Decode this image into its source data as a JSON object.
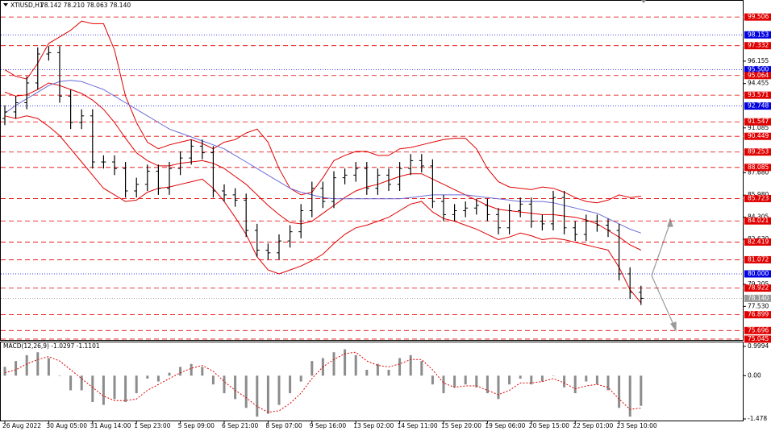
{
  "chart_data": [
    {
      "type": "ohlc",
      "title": "XTIUSD,H1",
      "quote": "78.142 78.210 78.063 78.140",
      "categories": [
        "26 Aug 2022",
        null,
        null,
        null,
        "30 Aug 05:00",
        null,
        null,
        null,
        "31 Aug 14:00",
        null,
        null,
        null,
        "1 Sep 23:00",
        null,
        null,
        null,
        "5 Sep 09:00",
        null,
        null,
        null,
        "6 Sep 21:00",
        null,
        null,
        null,
        "8 Sep 07:00",
        null,
        null,
        null,
        "9 Sep 16:00",
        null,
        null,
        null,
        "13 Sep 02:00",
        null,
        null,
        null,
        "14 Sep 11:00",
        null,
        null,
        null,
        "15 Sep 20:00",
        null,
        null,
        null,
        "19 Sep 06:00",
        null,
        null,
        null,
        "20 Sep 15:00",
        null,
        null,
        null,
        "22 Sep 01:00",
        null,
        null,
        null,
        "23 Sep 10:00",
        null,
        null
      ],
      "open": [
        91.8,
        92.3,
        93.0,
        94.5,
        96.7,
        96.8,
        93.5,
        91.5,
        92.0,
        88.5,
        88.5,
        88.0,
        86.3,
        86.8,
        87.8,
        86.5,
        88.0,
        88.8,
        89.7,
        89.2,
        86.3,
        86.0,
        85.6,
        83.3,
        81.8,
        81.6,
        82.5,
        83.2,
        84.8,
        86.5,
        85.5,
        87.3,
        87.5,
        88.0,
        86.5,
        87.5,
        86.8,
        88.0,
        88.6,
        88.2,
        85.5,
        84.5,
        84.8,
        85.0,
        85.2,
        84.5,
        83.5,
        84.8,
        85.3,
        84.0,
        83.8,
        85.8,
        83.5,
        83.0,
        84.0,
        83.7,
        83.3,
        80.0,
        78.6
      ],
      "high": [
        92.8,
        93.5,
        95.0,
        97.2,
        97.3,
        97.3,
        94.0,
        92.5,
        92.5,
        89.0,
        89.0,
        88.5,
        87.3,
        88.3,
        88.3,
        88.5,
        89.3,
        90.2,
        90.2,
        89.7,
        86.8,
        86.5,
        86.1,
        83.8,
        82.3,
        83.0,
        83.7,
        85.3,
        87.0,
        87.0,
        87.8,
        88.0,
        88.5,
        88.5,
        88.0,
        88.0,
        88.5,
        89.1,
        89.1,
        88.7,
        86.0,
        85.3,
        85.5,
        85.7,
        85.7,
        85.0,
        85.3,
        85.8,
        85.8,
        84.5,
        86.3,
        86.3,
        84.0,
        84.5,
        84.5,
        84.2,
        83.8,
        80.5,
        79.1
      ],
      "low": [
        91.3,
        91.8,
        92.5,
        94.0,
        96.2,
        93.0,
        91.0,
        91.0,
        88.0,
        88.0,
        87.5,
        85.8,
        85.8,
        86.3,
        86.0,
        86.0,
        87.5,
        88.3,
        88.7,
        85.8,
        85.5,
        85.1,
        82.8,
        81.3,
        81.1,
        81.1,
        82.0,
        82.7,
        84.3,
        85.0,
        85.0,
        86.8,
        87.0,
        86.0,
        86.0,
        86.3,
        86.3,
        87.5,
        87.7,
        85.0,
        84.0,
        84.0,
        84.3,
        84.5,
        84.0,
        83.0,
        83.0,
        84.3,
        83.5,
        83.3,
        83.3,
        83.0,
        82.5,
        82.5,
        83.2,
        82.8,
        79.5,
        78.1,
        77.64
      ],
      "close": [
        92.3,
        93.0,
        94.5,
        96.7,
        96.8,
        93.5,
        91.5,
        92.0,
        88.5,
        88.5,
        88.0,
        86.3,
        86.8,
        87.8,
        86.5,
        88.0,
        88.8,
        89.7,
        89.2,
        86.3,
        86.0,
        85.6,
        83.3,
        81.8,
        81.6,
        82.5,
        83.2,
        84.8,
        86.5,
        85.5,
        87.3,
        87.5,
        88.0,
        86.5,
        87.5,
        86.8,
        88.0,
        88.6,
        88.2,
        85.5,
        84.5,
        84.8,
        85.0,
        85.2,
        84.5,
        83.5,
        84.8,
        85.3,
        84.0,
        83.8,
        85.8,
        83.5,
        83.0,
        84.0,
        83.7,
        83.3,
        80.0,
        78.6,
        78.14
      ],
      "bar_color": "#000000",
      "series": [
        {
          "color": "#e00000",
          "values": [
            95.5,
            95.0,
            94.8,
            96.0,
            97.5,
            98.0,
            98.5,
            99.2,
            99.0,
            99.0,
            97.0,
            93.5,
            91.5,
            90.0,
            89.5,
            89.8,
            90.0,
            90.2,
            89.9,
            89.5,
            90.0,
            90.2,
            90.7,
            91.0,
            90.0,
            88.0,
            86.5,
            86.0,
            86.2,
            87.3,
            88.6,
            89.0,
            89.3,
            89.3,
            89.0,
            89.0,
            89.5,
            89.6,
            89.8,
            90.0,
            90.2,
            90.3,
            90.3,
            89.5,
            88.0,
            87.0,
            86.6,
            86.5,
            86.4,
            86.6,
            86.5,
            86.2,
            85.8,
            85.5,
            85.4,
            85.6,
            86.0,
            85.8,
            85.9
          ]
        },
        {
          "color": "#e00000",
          "values": [
            93.8,
            93.5,
            93.6,
            94.0,
            94.5,
            94.3,
            94.0,
            93.7,
            93.2,
            92.5,
            91.5,
            90.3,
            89.2,
            88.6,
            88.2,
            88.2,
            88.4,
            88.5,
            88.6,
            88.4,
            88.0,
            87.4,
            86.8,
            86.0,
            85.2,
            84.5,
            83.9,
            83.8,
            84.0,
            84.6,
            85.2,
            85.8,
            86.3,
            86.6,
            86.8,
            87.1,
            87.4,
            87.6,
            87.6,
            87.2,
            86.8,
            86.4,
            86.0,
            85.6,
            85.2,
            84.9,
            84.8,
            84.7,
            84.6,
            84.5,
            84.5,
            84.4,
            84.3,
            84.1,
            83.8,
            83.3,
            82.8,
            82.2,
            81.8
          ]
        },
        {
          "color": "#e00000",
          "values": [
            92.0,
            91.8,
            92.0,
            91.8,
            91.2,
            90.5,
            89.5,
            88.5,
            87.5,
            86.5,
            86.0,
            85.5,
            85.6,
            86.2,
            86.5,
            86.6,
            86.8,
            87.0,
            87.2,
            86.5,
            85.5,
            84.3,
            83.0,
            81.3,
            80.3,
            80.0,
            80.3,
            80.6,
            81.0,
            81.5,
            82.3,
            83.0,
            83.5,
            83.7,
            84.0,
            84.3,
            84.8,
            85.3,
            85.5,
            84.7,
            84.2,
            84.0,
            83.7,
            83.4,
            83.0,
            82.6,
            82.8,
            83.1,
            82.9,
            82.6,
            82.7,
            82.6,
            82.4,
            82.2,
            82.0,
            81.8,
            80.5,
            78.8,
            77.8
          ]
        },
        {
          "color": "#6b6bd8",
          "values": [
            92.2,
            92.8,
            93.3,
            93.8,
            94.3,
            94.6,
            94.7,
            94.6,
            94.3,
            94.0,
            93.5,
            93.0,
            92.5,
            92.0,
            91.5,
            91.0,
            90.7,
            90.4,
            90.1,
            89.8,
            89.5,
            89.0,
            88.5,
            88.0,
            87.5,
            87.0,
            86.5,
            86.2,
            86.0,
            85.8,
            85.7,
            85.7,
            85.7,
            85.7,
            85.7,
            85.7,
            85.7,
            85.8,
            85.9,
            86.0,
            86.0,
            86.0,
            86.0,
            85.9,
            85.8,
            85.7,
            85.6,
            85.5,
            85.5,
            85.5,
            85.4,
            85.2,
            85.0,
            84.8,
            84.6,
            84.2,
            83.8,
            83.4,
            83.1
          ]
        }
      ],
      "ylim": [
        74.92,
        100.8
      ],
      "yticks": [
        96.155,
        94.455,
        91.085,
        {
          "value": 87.68,
          "label": "87.680"
        },
        {
          "value": 85.98,
          "label": "85.980"
        },
        84.305,
        {
          "value": 82.63,
          "label": "82.630"
        },
        79.205,
        {
          "value": 77.53,
          "label": "77.530"
        }
      ],
      "levels": [
        {
          "value": 99.506,
          "color": "#e00000"
        },
        {
          "value": 98.153,
          "color": "#0000e0"
        },
        {
          "value": 97.332,
          "color": "#e00000"
        },
        {
          "value": 95.5,
          "label": "95.500",
          "color": "#0000e0"
        },
        {
          "value": 95.064,
          "color": "#e00000"
        },
        {
          "value": 93.571,
          "color": "#e00000"
        },
        {
          "value": 92.748,
          "color": "#0000e0"
        },
        {
          "value": 91.547,
          "color": "#e00000"
        },
        {
          "value": 90.449,
          "color": "#e00000"
        },
        {
          "value": 89.253,
          "color": "#e00000"
        },
        {
          "value": 88.085,
          "color": "#e00000"
        },
        {
          "value": 85.723,
          "color": "#e00000"
        },
        {
          "value": 84.021,
          "color": "#e00000"
        },
        {
          "value": 82.419,
          "color": "#e00000"
        },
        {
          "value": 81.072,
          "color": "#e00000"
        },
        {
          "value": 80.0,
          "label": "80.000",
          "color": "#0000e0"
        },
        {
          "value": 78.922,
          "color": "#e00000"
        },
        {
          "value": 78.14,
          "label": "78.140",
          "color": "#9a9a9a"
        },
        {
          "value": 76.899,
          "color": "#e00000"
        },
        {
          "value": 75.696,
          "color": "#e00000"
        },
        {
          "value": 75.045,
          "color": "#e00000"
        }
      ]
    },
    {
      "type": "macd",
      "title": "MACD(12,26,9) -1.0297 -1.1101",
      "color": "#8c8c8c",
      "values": [
        0.3,
        0.5,
        0.7,
        0.8,
        0.6,
        0.0,
        -0.5,
        -0.5,
        -0.9,
        -1.0,
        -0.8,
        -0.9,
        -0.6,
        -0.1,
        -0.2,
        0.1,
        0.3,
        0.4,
        0.3,
        -0.3,
        -0.6,
        -0.8,
        -1.1,
        -1.4,
        -1.3,
        -1.0,
        -0.6,
        -0.2,
        0.5,
        0.6,
        0.8,
        0.9,
        0.7,
        0.2,
        0.4,
        0.2,
        0.6,
        0.7,
        0.5,
        -0.3,
        -0.6,
        -0.4,
        -0.3,
        -0.4,
        -0.6,
        -0.8,
        -0.3,
        -0.1,
        -0.3,
        -0.2,
        0.0,
        -0.4,
        -0.6,
        -0.2,
        -0.3,
        -0.5,
        -1.1,
        -1.4,
        -1.0297
      ],
      "signal": {
        "color": "#e00000",
        "values": [
          0.1,
          0.2,
          0.4,
          0.55,
          0.65,
          0.5,
          0.2,
          -0.1,
          -0.4,
          -0.7,
          -0.85,
          -0.85,
          -0.8,
          -0.5,
          -0.3,
          -0.1,
          0.1,
          0.25,
          0.35,
          0.15,
          -0.2,
          -0.5,
          -0.75,
          -1.05,
          -1.25,
          -1.2,
          -0.95,
          -0.6,
          -0.1,
          0.3,
          0.55,
          0.75,
          0.8,
          0.5,
          0.35,
          0.3,
          0.4,
          0.55,
          0.55,
          0.2,
          -0.25,
          -0.4,
          -0.35,
          -0.35,
          -0.5,
          -0.65,
          -0.5,
          -0.25,
          -0.25,
          -0.2,
          -0.1,
          -0.25,
          -0.45,
          -0.35,
          -0.3,
          -0.4,
          -0.8,
          -1.15,
          -1.1101
        ]
      },
      "ylim": [
        -1.56,
        1.164
      ],
      "yticks": [
        0.9994,
        {
          "value": 0,
          "label": "0.00"
        },
        -1.478
      ]
    }
  ]
}
